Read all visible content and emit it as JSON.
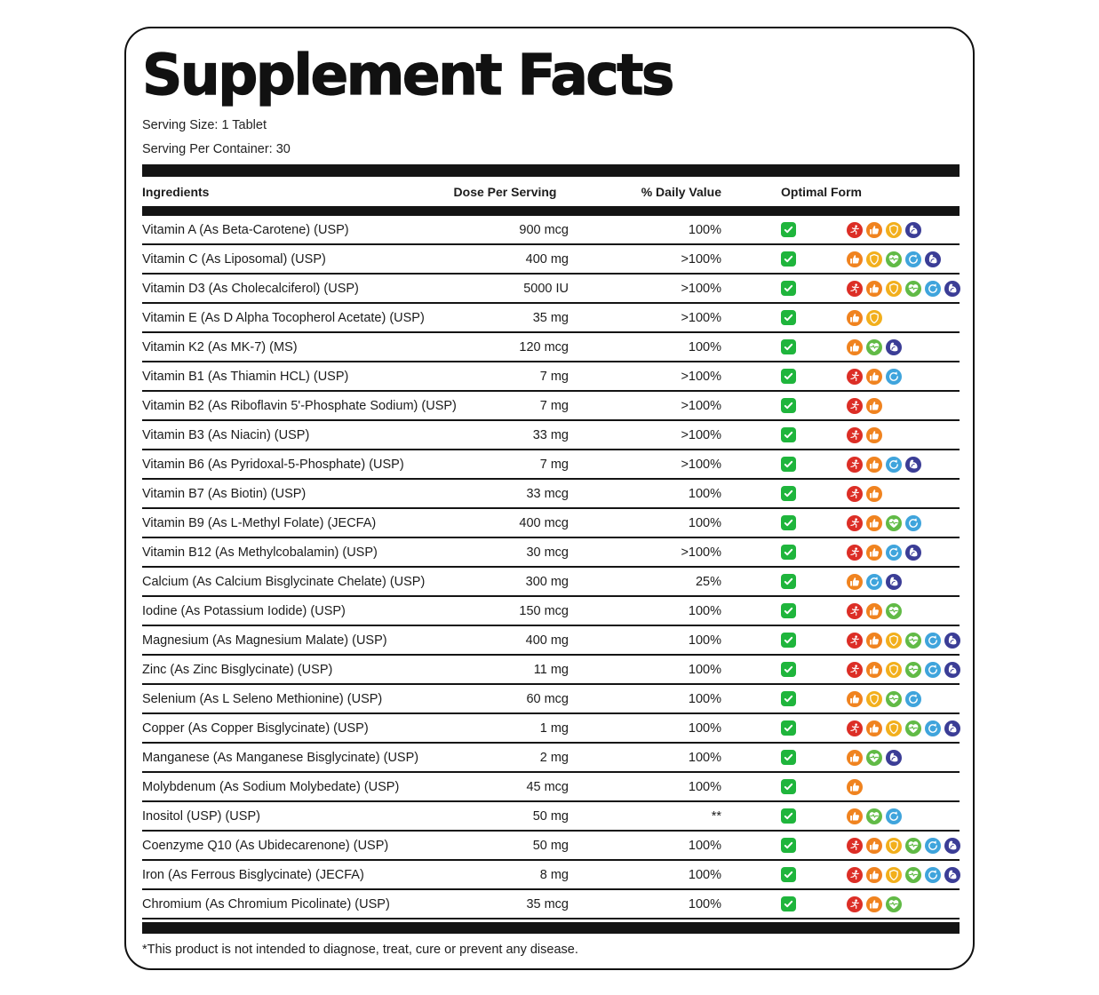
{
  "header": {
    "title": "Supplement Facts",
    "serving_size": "Serving Size: 1 Tablet",
    "serving_per_container": "Serving Per Container: 30"
  },
  "table": {
    "columns": [
      "Ingredients",
      "Dose Per Serving",
      "% Daily Value",
      "Optimal Form"
    ],
    "optimal_check_color": "#1fb53c",
    "benefit_icon_colors": {
      "runner": "#dc2e26",
      "thumbs-up": "#f0831f",
      "shield": "#f2af1c",
      "heart-pulse": "#61ba46",
      "refresh": "#3fa4dc",
      "muscle": "#3b3d96"
    },
    "rows": [
      {
        "ingredient": "Vitamin A (As Beta-Carotene) (USP)",
        "dose": "900 mcg",
        "daily_value": "100%",
        "optimal_form": true,
        "benefits": [
          "runner",
          "thumbs-up",
          "shield",
          "muscle"
        ]
      },
      {
        "ingredient": "Vitamin C (As Liposomal) (USP)",
        "dose": "400 mg",
        "daily_value": ">100%",
        "optimal_form": true,
        "benefits": [
          "thumbs-up",
          "shield",
          "heart-pulse",
          "refresh",
          "muscle"
        ]
      },
      {
        "ingredient": "Vitamin D3 (As Cholecalciferol) (USP)",
        "dose": "5000 IU",
        "daily_value": ">100%",
        "optimal_form": true,
        "benefits": [
          "runner",
          "thumbs-up",
          "shield",
          "heart-pulse",
          "refresh",
          "muscle"
        ]
      },
      {
        "ingredient": "Vitamin E (As D Alpha Tocopherol Acetate) (USP)",
        "dose": "35 mg",
        "daily_value": ">100%",
        "optimal_form": true,
        "benefits": [
          "thumbs-up",
          "shield"
        ]
      },
      {
        "ingredient": "Vitamin K2 (As MK-7) (MS)",
        "dose": "120 mcg",
        "daily_value": "100%",
        "optimal_form": true,
        "benefits": [
          "thumbs-up",
          "heart-pulse",
          "muscle"
        ]
      },
      {
        "ingredient": "Vitamin B1 (As Thiamin HCL) (USP)",
        "dose": "7 mg",
        "daily_value": ">100%",
        "optimal_form": true,
        "benefits": [
          "runner",
          "thumbs-up",
          "refresh"
        ]
      },
      {
        "ingredient": "Vitamin B2 (As Riboflavin 5'-Phosphate Sodium) (USP)",
        "dose": "7 mg",
        "daily_value": ">100%",
        "optimal_form": true,
        "benefits": [
          "runner",
          "thumbs-up"
        ]
      },
      {
        "ingredient": "Vitamin B3 (As Niacin) (USP)",
        "dose": "33 mg",
        "daily_value": ">100%",
        "optimal_form": true,
        "benefits": [
          "runner",
          "thumbs-up"
        ]
      },
      {
        "ingredient": "Vitamin B6 (As Pyridoxal-5-Phosphate) (USP)",
        "dose": "7 mg",
        "daily_value": ">100%",
        "optimal_form": true,
        "benefits": [
          "runner",
          "thumbs-up",
          "refresh",
          "muscle"
        ]
      },
      {
        "ingredient": "Vitamin B7 (As Biotin) (USP)",
        "dose": "33 mcg",
        "daily_value": "100%",
        "optimal_form": true,
        "benefits": [
          "runner",
          "thumbs-up"
        ]
      },
      {
        "ingredient": "Vitamin B9 (As L-Methyl Folate) (JECFA)",
        "dose": "400 mcg",
        "daily_value": "100%",
        "optimal_form": true,
        "benefits": [
          "runner",
          "thumbs-up",
          "heart-pulse",
          "refresh"
        ]
      },
      {
        "ingredient": "Vitamin B12 (As Methylcobalamin) (USP)",
        "dose": "30 mcg",
        "daily_value": ">100%",
        "optimal_form": true,
        "benefits": [
          "runner",
          "thumbs-up",
          "refresh",
          "muscle"
        ]
      },
      {
        "ingredient": "Calcium (As Calcium Bisglycinate Chelate) (USP)",
        "dose": "300 mg",
        "daily_value": "25%",
        "optimal_form": true,
        "benefits": [
          "thumbs-up",
          "refresh",
          "muscle"
        ]
      },
      {
        "ingredient": "Iodine (As Potassium Iodide) (USP)",
        "dose": "150 mcg",
        "daily_value": "100%",
        "optimal_form": true,
        "benefits": [
          "runner",
          "thumbs-up",
          "heart-pulse"
        ]
      },
      {
        "ingredient": "Magnesium (As Magnesium Malate) (USP)",
        "dose": "400 mg",
        "daily_value": "100%",
        "optimal_form": true,
        "benefits": [
          "runner",
          "thumbs-up",
          "shield",
          "heart-pulse",
          "refresh",
          "muscle"
        ]
      },
      {
        "ingredient": "Zinc (As Zinc Bisglycinate) (USP)",
        "dose": "11 mg",
        "daily_value": "100%",
        "optimal_form": true,
        "benefits": [
          "runner",
          "thumbs-up",
          "shield",
          "heart-pulse",
          "refresh",
          "muscle"
        ]
      },
      {
        "ingredient": "Selenium (As L Seleno Methionine) (USP)",
        "dose": "60 mcg",
        "daily_value": "100%",
        "optimal_form": true,
        "benefits": [
          "thumbs-up",
          "shield",
          "heart-pulse",
          "refresh"
        ]
      },
      {
        "ingredient": "Copper (As Copper Bisglycinate) (USP)",
        "dose": "1 mg",
        "daily_value": "100%",
        "optimal_form": true,
        "benefits": [
          "runner",
          "thumbs-up",
          "shield",
          "heart-pulse",
          "refresh",
          "muscle"
        ]
      },
      {
        "ingredient": "Manganese (As Manganese Bisglycinate) (USP)",
        "dose": "2 mg",
        "daily_value": "100%",
        "optimal_form": true,
        "benefits": [
          "thumbs-up",
          "heart-pulse",
          "muscle"
        ]
      },
      {
        "ingredient": "Molybdenum (As Sodium Molybedate) (USP)",
        "dose": "45 mcg",
        "daily_value": "100%",
        "optimal_form": true,
        "benefits": [
          "thumbs-up"
        ]
      },
      {
        "ingredient": "Inositol (USP) (USP)",
        "dose": "50 mg",
        "daily_value": "**",
        "optimal_form": true,
        "benefits": [
          "thumbs-up",
          "heart-pulse",
          "refresh"
        ]
      },
      {
        "ingredient": "Coenzyme Q10 (As Ubidecarenone) (USP)",
        "dose": "50 mg",
        "daily_value": "100%",
        "optimal_form": true,
        "benefits": [
          "runner",
          "thumbs-up",
          "shield",
          "heart-pulse",
          "refresh",
          "muscle"
        ]
      },
      {
        "ingredient": "Iron (As Ferrous Bisglycinate) (JECFA)",
        "dose": "8 mg",
        "daily_value": "100%",
        "optimal_form": true,
        "benefits": [
          "runner",
          "thumbs-up",
          "shield",
          "heart-pulse",
          "refresh",
          "muscle"
        ]
      },
      {
        "ingredient": "Chromium (As Chromium Picolinate) (USP)",
        "dose": "35 mcg",
        "daily_value": "100%",
        "optimal_form": true,
        "benefits": [
          "runner",
          "thumbs-up",
          "heart-pulse"
        ]
      }
    ]
  },
  "footer": {
    "disclaimer": "*This product is not intended to diagnose, treat, cure or prevent any disease."
  }
}
